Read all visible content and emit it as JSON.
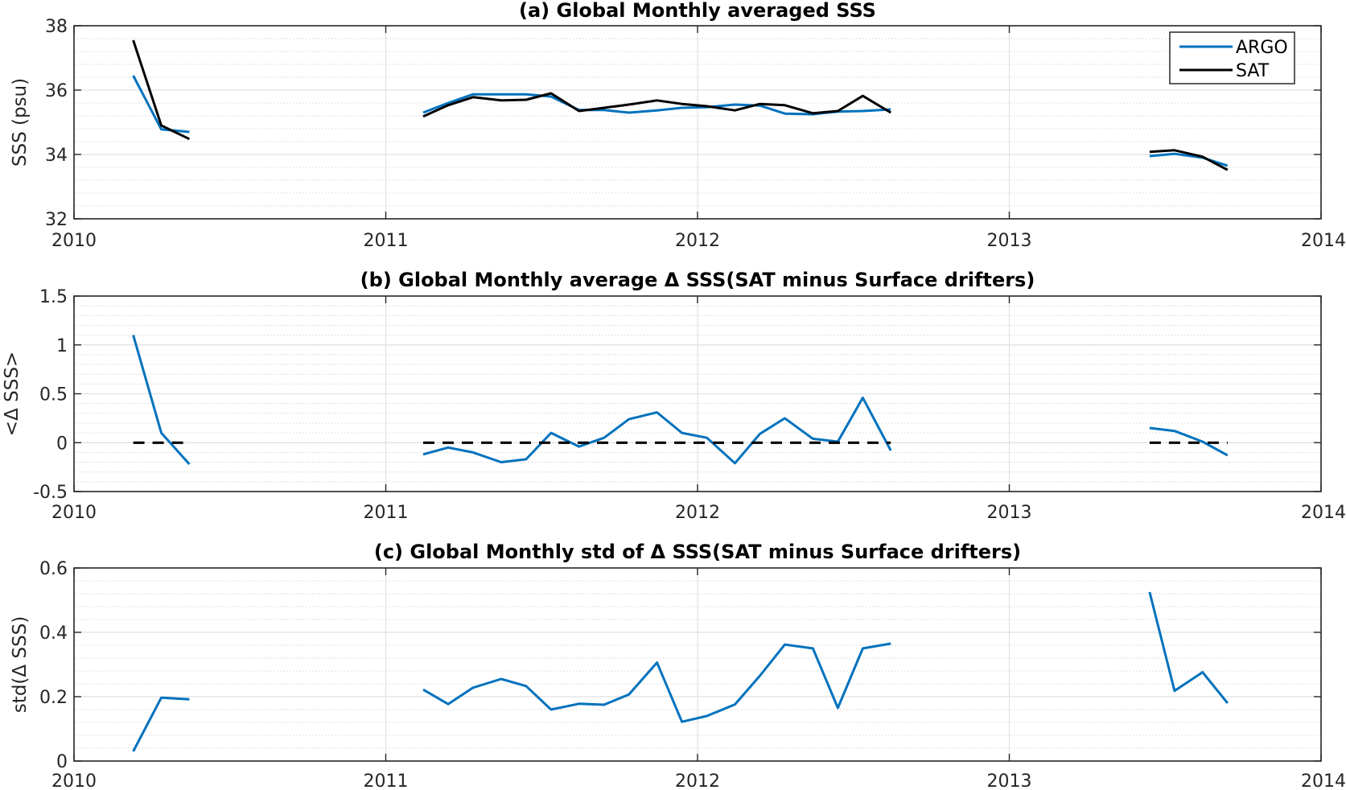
{
  "chart_data": [
    {
      "type": "line",
      "title": "(a) Global Monthly averaged SSS",
      "ylabel": "SSS (psu)",
      "xlabel": "",
      "xlim": [
        2010,
        2014
      ],
      "ylim": [
        32,
        38
      ],
      "xticks": [
        "2010",
        "2011",
        "2012",
        "2013",
        "2014"
      ],
      "yticks": [
        "32",
        "34",
        "36",
        "38"
      ],
      "grid": true,
      "minor_grid": true,
      "legend": "top-right",
      "series": [
        {
          "name": "ARGO",
          "color": "#0072bd",
          "style": "solid",
          "segments": [
            [
              [
                2010.19,
                36.45
              ],
              [
                2010.28,
                34.78
              ],
              [
                2010.37,
                34.7
              ]
            ],
            [
              [
                2011.12,
                35.3
              ],
              [
                2011.2,
                35.6
              ],
              [
                2011.28,
                35.87
              ],
              [
                2011.37,
                35.87
              ],
              [
                2011.45,
                35.87
              ],
              [
                2011.53,
                35.8
              ],
              [
                2011.62,
                35.38
              ],
              [
                2011.7,
                35.38
              ],
              [
                2011.78,
                35.3
              ],
              [
                2011.87,
                35.37
              ],
              [
                2011.95,
                35.45
              ],
              [
                2012.03,
                35.47
              ],
              [
                2012.12,
                35.55
              ],
              [
                2012.2,
                35.52
              ],
              [
                2012.28,
                35.27
              ],
              [
                2012.37,
                35.25
              ],
              [
                2012.45,
                35.33
              ],
              [
                2012.53,
                35.35
              ],
              [
                2012.62,
                35.4
              ]
            ],
            [
              [
                2013.45,
                33.95
              ],
              [
                2013.53,
                34.02
              ],
              [
                2013.62,
                33.9
              ],
              [
                2013.7,
                33.65
              ]
            ]
          ]
        },
        {
          "name": "SAT",
          "color": "#000000",
          "style": "solid",
          "segments": [
            [
              [
                2010.19,
                37.55
              ],
              [
                2010.28,
                34.9
              ],
              [
                2010.37,
                34.48
              ]
            ],
            [
              [
                2011.12,
                35.18
              ],
              [
                2011.2,
                35.53
              ],
              [
                2011.28,
                35.78
              ],
              [
                2011.37,
                35.68
              ],
              [
                2011.45,
                35.7
              ],
              [
                2011.53,
                35.9
              ],
              [
                2011.62,
                35.35
              ],
              [
                2011.7,
                35.45
              ],
              [
                2011.78,
                35.55
              ],
              [
                2011.87,
                35.68
              ],
              [
                2011.95,
                35.57
              ],
              [
                2012.03,
                35.5
              ],
              [
                2012.12,
                35.37
              ],
              [
                2012.2,
                35.57
              ],
              [
                2012.28,
                35.53
              ],
              [
                2012.37,
                35.28
              ],
              [
                2012.45,
                35.35
              ],
              [
                2012.53,
                35.82
              ],
              [
                2012.62,
                35.3
              ]
            ],
            [
              [
                2013.45,
                34.08
              ],
              [
                2013.53,
                34.13
              ],
              [
                2013.62,
                33.93
              ],
              [
                2013.7,
                33.52
              ]
            ]
          ]
        }
      ],
      "legend_entries": [
        {
          "label": "ARGO",
          "color": "#0072bd"
        },
        {
          "label": "SAT",
          "color": "#000000"
        }
      ]
    },
    {
      "type": "line",
      "title": "(b) Global Monthly average Δ SSS(SAT minus Surface drifters)",
      "ylabel": "<Δ SSS>",
      "xlabel": "",
      "xlim": [
        2010,
        2014
      ],
      "ylim": [
        -0.5,
        1.5
      ],
      "xticks": [
        "2010",
        "2011",
        "2012",
        "2013",
        "2014"
      ],
      "yticks": [
        "-0.5",
        "0",
        "0.5",
        "1",
        "1.5"
      ],
      "grid": true,
      "minor_grid": true,
      "series": [
        {
          "color": "#0072bd",
          "style": "solid",
          "segments": [
            [
              [
                2010.19,
                1.1
              ],
              [
                2010.28,
                0.1
              ],
              [
                2010.37,
                -0.22
              ]
            ],
            [
              [
                2011.12,
                -0.12
              ],
              [
                2011.2,
                -0.05
              ],
              [
                2011.28,
                -0.1
              ],
              [
                2011.37,
                -0.2
              ],
              [
                2011.45,
                -0.17
              ],
              [
                2011.53,
                0.1
              ],
              [
                2011.62,
                -0.04
              ],
              [
                2011.7,
                0.05
              ],
              [
                2011.78,
                0.24
              ],
              [
                2011.87,
                0.31
              ],
              [
                2011.95,
                0.1
              ],
              [
                2012.03,
                0.05
              ],
              [
                2012.12,
                -0.21
              ],
              [
                2012.2,
                0.09
              ],
              [
                2012.28,
                0.25
              ],
              [
                2012.37,
                0.04
              ],
              [
                2012.45,
                0.01
              ],
              [
                2012.53,
                0.46
              ],
              [
                2012.62,
                -0.08
              ]
            ],
            [
              [
                2013.45,
                0.15
              ],
              [
                2013.53,
                0.12
              ],
              [
                2013.62,
                0.01
              ],
              [
                2013.7,
                -0.13
              ]
            ]
          ]
        },
        {
          "color": "#000000",
          "style": "dashed",
          "segments": [
            [
              [
                2010.19,
                0
              ],
              [
                2010.37,
                0
              ]
            ],
            [
              [
                2011.12,
                0
              ],
              [
                2012.62,
                0
              ]
            ],
            [
              [
                2013.45,
                0
              ],
              [
                2013.7,
                0
              ]
            ]
          ]
        }
      ]
    },
    {
      "type": "line",
      "title": "(c) Global Monthly std of Δ SSS(SAT minus Surface drifters)",
      "ylabel": "std(Δ SSS)",
      "xlabel": "",
      "xlim": [
        2010,
        2014
      ],
      "ylim": [
        0,
        0.6
      ],
      "xticks": [
        "2010",
        "2011",
        "2012",
        "2013",
        "2014"
      ],
      "yticks": [
        "0",
        "0.2",
        "0.4",
        "0.6"
      ],
      "grid": true,
      "minor_grid": true,
      "series": [
        {
          "color": "#0072bd",
          "style": "solid",
          "segments": [
            [
              [
                2010.19,
                0.03
              ],
              [
                2010.28,
                0.197
              ],
              [
                2010.37,
                0.192
              ]
            ],
            [
              [
                2011.12,
                0.222
              ],
              [
                2011.2,
                0.177
              ],
              [
                2011.28,
                0.228
              ],
              [
                2011.37,
                0.255
              ],
              [
                2011.45,
                0.233
              ],
              [
                2011.53,
                0.16
              ],
              [
                2011.62,
                0.178
              ],
              [
                2011.7,
                0.175
              ],
              [
                2011.78,
                0.207
              ],
              [
                2011.87,
                0.306
              ],
              [
                2011.95,
                0.122
              ],
              [
                2012.03,
                0.14
              ],
              [
                2012.12,
                0.176
              ],
              [
                2012.2,
                0.265
              ],
              [
                2012.28,
                0.362
              ],
              [
                2012.37,
                0.35
              ],
              [
                2012.45,
                0.165
              ],
              [
                2012.53,
                0.35
              ],
              [
                2012.62,
                0.365
              ]
            ],
            [
              [
                2013.45,
                0.525
              ],
              [
                2013.53,
                0.218
              ],
              [
                2013.62,
                0.276
              ],
              [
                2013.7,
                0.18
              ]
            ]
          ]
        }
      ]
    }
  ]
}
